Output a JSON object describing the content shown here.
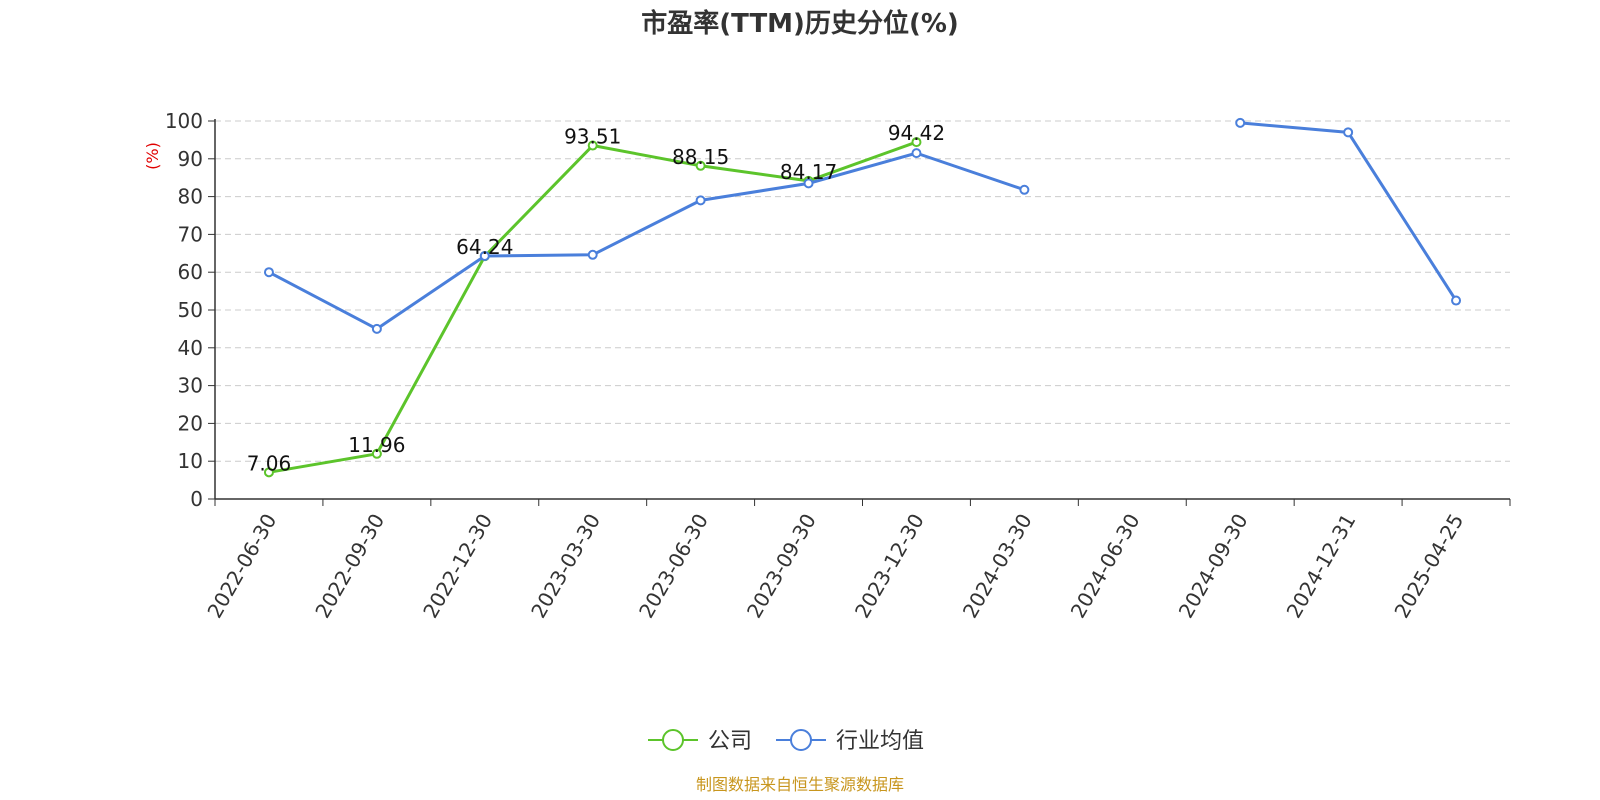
{
  "chart_data": {
    "type": "line",
    "title": "市盈率(TTM)历史分位(%)",
    "ylabel": "(%)",
    "xlabel": "",
    "ylim": [
      0,
      100
    ],
    "yticks": [
      0,
      10,
      20,
      30,
      40,
      50,
      60,
      70,
      80,
      90,
      100
    ],
    "grid": true,
    "legend_position": "bottom-center",
    "categories": [
      "2022-06-30",
      "2022-09-30",
      "2022-12-30",
      "2023-03-30",
      "2023-06-30",
      "2023-09-30",
      "2023-12-30",
      "2024-03-30",
      "2024-06-30",
      "2024-09-30",
      "2024-12-31",
      "2025-04-25"
    ],
    "series": [
      {
        "name": "公司",
        "color": "#5cc42b",
        "values": [
          7.06,
          11.96,
          64.24,
          93.51,
          88.15,
          84.17,
          94.42,
          null,
          null,
          null,
          null,
          null
        ],
        "show_labels": true
      },
      {
        "name": "行业均值",
        "color": "#4a7fdb",
        "values": [
          60.0,
          45.0,
          64.3,
          64.6,
          79.0,
          83.5,
          91.5,
          81.8,
          null,
          99.5,
          97.0,
          52.5
        ],
        "show_labels": false
      }
    ],
    "source": "制图数据来自恒生聚源数据库",
    "source_color": "#c8961e",
    "ylabel_color": "#e00000"
  }
}
